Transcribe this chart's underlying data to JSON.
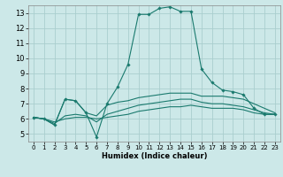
{
  "title": "",
  "xlabel": "Humidex (Indice chaleur)",
  "xlim": [
    -0.5,
    23.5
  ],
  "ylim": [
    4.5,
    13.5
  ],
  "xticks": [
    0,
    1,
    2,
    3,
    4,
    5,
    6,
    7,
    8,
    9,
    10,
    11,
    12,
    13,
    14,
    15,
    16,
    17,
    18,
    19,
    20,
    21,
    22,
    23
  ],
  "yticks": [
    5,
    6,
    7,
    8,
    9,
    10,
    11,
    12,
    13
  ],
  "bg_color": "#cce8e8",
  "grid_color": "#aacece",
  "line_color": "#1a7a6e",
  "lines": [
    {
      "x": [
        0,
        1,
        2,
        3,
        4,
        5,
        6,
        7,
        8,
        9,
        10,
        11,
        12,
        13,
        14,
        15,
        16,
        17,
        18,
        19,
        20,
        21,
        22,
        23
      ],
      "y": [
        6.1,
        6.0,
        5.6,
        7.3,
        7.2,
        6.4,
        4.8,
        7.0,
        8.1,
        9.6,
        12.9,
        12.9,
        13.3,
        13.4,
        13.1,
        13.1,
        9.3,
        8.4,
        7.9,
        7.8,
        7.6,
        6.7,
        6.3,
        6.3
      ],
      "marker": true
    },
    {
      "x": [
        0,
        1,
        2,
        3,
        4,
        5,
        6,
        7,
        8,
        9,
        10,
        11,
        12,
        13,
        14,
        15,
        16,
        17,
        18,
        19,
        20,
        21,
        22,
        23
      ],
      "y": [
        6.1,
        6.0,
        5.6,
        7.3,
        7.2,
        6.4,
        6.2,
        6.9,
        7.1,
        7.2,
        7.4,
        7.5,
        7.6,
        7.7,
        7.7,
        7.7,
        7.5,
        7.5,
        7.5,
        7.4,
        7.3,
        7.0,
        6.7,
        6.4
      ],
      "marker": false
    },
    {
      "x": [
        0,
        1,
        2,
        3,
        4,
        5,
        6,
        7,
        8,
        9,
        10,
        11,
        12,
        13,
        14,
        15,
        16,
        17,
        18,
        19,
        20,
        21,
        22,
        23
      ],
      "y": [
        6.1,
        6.0,
        5.8,
        6.0,
        6.1,
        6.1,
        6.0,
        6.1,
        6.2,
        6.3,
        6.5,
        6.6,
        6.7,
        6.8,
        6.8,
        6.9,
        6.8,
        6.7,
        6.7,
        6.7,
        6.6,
        6.4,
        6.3,
        6.3
      ],
      "marker": false
    },
    {
      "x": [
        0,
        1,
        2,
        3,
        4,
        5,
        6,
        7,
        8,
        9,
        10,
        11,
        12,
        13,
        14,
        15,
        16,
        17,
        18,
        19,
        20,
        21,
        22,
        23
      ],
      "y": [
        6.1,
        6.0,
        5.7,
        6.2,
        6.3,
        6.2,
        5.8,
        6.3,
        6.5,
        6.7,
        6.9,
        7.0,
        7.1,
        7.2,
        7.3,
        7.3,
        7.1,
        7.0,
        7.0,
        6.9,
        6.8,
        6.6,
        6.4,
        6.3
      ],
      "marker": false
    }
  ]
}
